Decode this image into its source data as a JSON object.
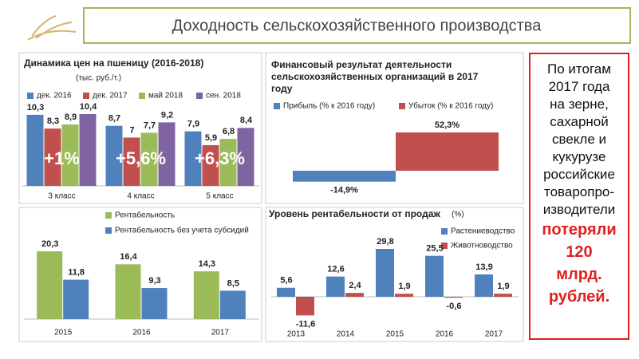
{
  "title": "Доходность сельскохозяйственного производства",
  "chart_data": [
    {
      "type": "bar",
      "title": "Динамика цен на пшеницу (2016-2018)",
      "subtitle": "(тыс. руб./т.)",
      "categories": [
        "3 класс",
        "4 класс",
        "5 класс"
      ],
      "series": [
        {
          "name": "дек. 2016",
          "color": "#4f81bd",
          "values": [
            10.3,
            8.7,
            7.9
          ],
          "value_labels": [
            "10,3",
            "8,7",
            "7,9"
          ]
        },
        {
          "name": "дек. 2017",
          "color": "#c0504d",
          "values": [
            8.3,
            7,
            5.9
          ],
          "value_labels": [
            "8,3",
            "7",
            "5,9"
          ]
        },
        {
          "name": "май 2018",
          "color": "#9bbb59",
          "values": [
            8.9,
            7.7,
            6.8
          ],
          "value_labels": [
            "8,9",
            "7,7",
            "6,8"
          ]
        },
        {
          "name": "сен. 2018",
          "color": "#8064a2",
          "values": [
            10.4,
            9.2,
            8.4
          ],
          "value_labels": [
            "10,4",
            "9,2",
            "8,4"
          ]
        }
      ],
      "annotations": [
        "+1%",
        "+5,6%",
        "+6,3%"
      ]
    },
    {
      "type": "bar",
      "title": "Финансовый результат деятельности сельскохозяйственных организаций в 2017 году",
      "series": [
        {
          "name": "Прибыль (% к 2016 году)",
          "color": "#4f81bd",
          "values": [
            -14.9
          ],
          "value_labels": [
            "-14,9%"
          ]
        },
        {
          "name": "Убыток (% к 2016 году)",
          "color": "#c0504d",
          "values": [
            52.3
          ],
          "value_labels": [
            "52,3%"
          ]
        }
      ]
    },
    {
      "type": "bar",
      "categories": [
        "2015",
        "2016",
        "2017"
      ],
      "series": [
        {
          "name": "Рентабельность",
          "color": "#9bbb59",
          "values": [
            20.3,
            16.4,
            14.3
          ],
          "value_labels": [
            "20,3",
            "16,4",
            "14,3"
          ]
        },
        {
          "name": "Рентабельность без учета субсидий",
          "color": "#4f81bd",
          "values": [
            11.8,
            9.3,
            8.5
          ],
          "value_labels": [
            "11,8",
            "9,3",
            "8,5"
          ]
        }
      ]
    },
    {
      "type": "bar",
      "title": "Уровень рентабельности от продаж",
      "subtitle": "(%)",
      "categories": [
        "2013",
        "2014",
        "2015",
        "2016",
        "2017"
      ],
      "series": [
        {
          "name": "Растениеводство",
          "color": "#4f81bd",
          "values": [
            5.6,
            12.6,
            29.8,
            25.5,
            13.9
          ],
          "value_labels": [
            "5,6",
            "12,6",
            "29,8",
            "25,5",
            "13,9"
          ]
        },
        {
          "name": "Животноводство",
          "color": "#c0504d",
          "values": [
            -11.6,
            2.4,
            1.9,
            -0.6,
            1.9
          ],
          "value_labels": [
            "-11,6",
            "2,4",
            "1,9",
            "-0,6",
            "1,9"
          ]
        }
      ]
    }
  ],
  "note": {
    "lines": [
      "По итогам",
      "2017 года",
      "на зерне,",
      "сахарной",
      "свекле и",
      "кукурузе",
      "российские",
      "товаропро-",
      "изводители"
    ],
    "highlight": [
      "потеряли",
      "120",
      "млрд.",
      "рублей."
    ]
  }
}
